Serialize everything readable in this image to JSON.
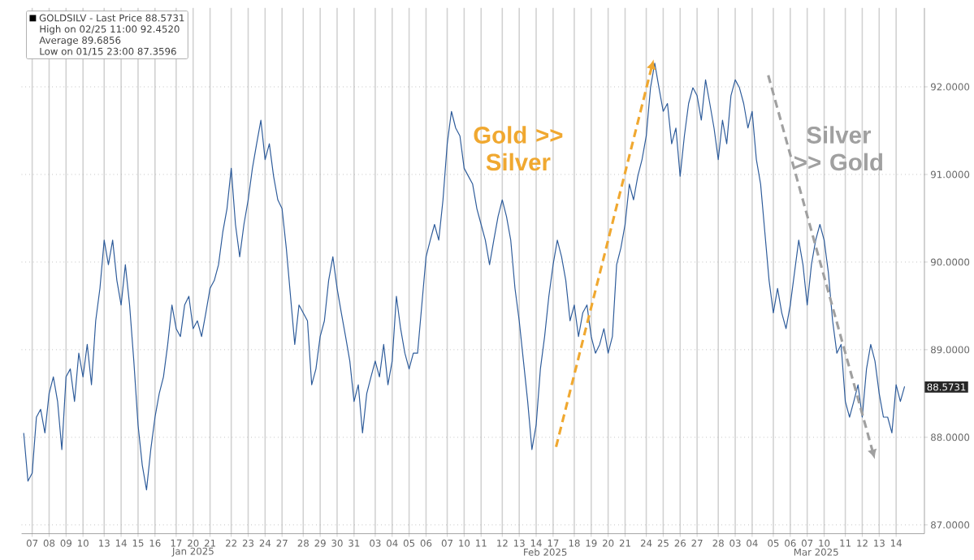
{
  "chart_data": {
    "type": "line",
    "categories": [
      null,
      null,
      "07",
      null,
      null,
      null,
      "08",
      null,
      null,
      null,
      "09",
      null,
      null,
      null,
      "10",
      null,
      null,
      null,
      null,
      "13",
      null,
      null,
      null,
      "14",
      null,
      null,
      null,
      "15",
      null,
      null,
      null,
      "16",
      null,
      null,
      null,
      null,
      "17",
      null,
      null,
      null,
      "20",
      null,
      null,
      null,
      "21",
      null,
      null,
      null,
      null,
      "22",
      null,
      null,
      null,
      "23",
      null,
      null,
      null,
      "24",
      null,
      null,
      null,
      "27",
      null,
      null,
      null,
      null,
      "28",
      null,
      null,
      null,
      "29",
      null,
      null,
      null,
      "30",
      null,
      null,
      null,
      "31",
      null,
      null,
      null,
      null,
      "03",
      null,
      null,
      null,
      "04",
      null,
      null,
      null,
      "05",
      null,
      null,
      null,
      "06",
      null,
      null,
      null,
      null,
      "07",
      null,
      null,
      null,
      "10",
      null,
      null,
      null,
      "11",
      null,
      null,
      null,
      null,
      "12",
      null,
      null,
      null,
      "13",
      null,
      null,
      null,
      "14",
      null,
      null,
      null,
      "17",
      null,
      null,
      null,
      null,
      "18",
      null,
      null,
      null,
      "19",
      null,
      null,
      null,
      "20",
      null,
      null,
      null,
      "21",
      null,
      null,
      null,
      null,
      "24",
      null,
      null,
      null,
      "25",
      null,
      null,
      null,
      "26",
      null,
      null,
      null,
      "27",
      null,
      null,
      null,
      null,
      "28",
      null,
      null,
      null,
      "03",
      null,
      null,
      null,
      "04",
      null,
      null,
      null,
      null,
      "05",
      null,
      null,
      null,
      "06",
      null,
      null,
      null,
      "07",
      null,
      null,
      null,
      "10",
      null,
      null,
      null,
      null,
      "11",
      null,
      null,
      null,
      "12",
      null,
      null,
      null,
      "13",
      null,
      null,
      null,
      "14",
      null,
      null
    ],
    "series": [
      {
        "name": "GOLDSILV - Last Price 88.5731",
        "color": "#2d5b9a",
        "values": [
          88.05,
          87.5,
          87.59,
          88.23,
          88.32,
          88.05,
          88.5,
          88.69,
          88.41,
          87.86,
          88.69,
          88.78,
          88.41,
          88.96,
          88.69,
          89.06,
          88.6,
          89.33,
          89.7,
          90.25,
          89.97,
          90.25,
          89.79,
          89.51,
          89.97,
          89.51,
          88.87,
          88.14,
          87.68,
          87.4,
          87.86,
          88.23,
          88.5,
          88.69,
          89.06,
          89.51,
          89.24,
          89.15,
          89.51,
          89.61,
          89.24,
          89.33,
          89.15,
          89.42,
          89.7,
          89.79,
          89.97,
          90.34,
          90.61,
          91.07,
          90.43,
          90.06,
          90.43,
          90.71,
          91.07,
          91.35,
          91.62,
          91.17,
          91.35,
          90.98,
          90.71,
          90.61,
          90.16,
          89.61,
          89.06,
          89.51,
          89.42,
          89.33,
          88.6,
          88.78,
          89.15,
          89.33,
          89.79,
          90.06,
          89.7,
          89.42,
          89.15,
          88.87,
          88.41,
          88.6,
          88.05,
          88.5,
          88.69,
          88.87,
          88.69,
          89.06,
          88.6,
          88.87,
          89.61,
          89.24,
          88.96,
          88.78,
          88.96,
          88.96,
          89.51,
          90.06,
          90.25,
          90.43,
          90.25,
          90.71,
          91.35,
          91.72,
          91.53,
          91.44,
          91.07,
          90.98,
          90.89,
          90.61,
          90.43,
          90.25,
          89.97,
          90.25,
          90.52,
          90.71,
          90.52,
          90.25,
          89.7,
          89.33,
          88.87,
          88.41,
          87.86,
          88.14,
          88.78,
          89.15,
          89.61,
          89.97,
          90.25,
          90.06,
          89.79,
          89.33,
          89.51,
          89.15,
          89.42,
          89.51,
          89.15,
          88.96,
          89.06,
          89.24,
          88.96,
          89.15,
          89.97,
          90.16,
          90.43,
          90.89,
          90.71,
          90.98,
          91.17,
          91.44,
          91.99,
          92.27,
          91.99,
          91.72,
          91.81,
          91.35,
          91.53,
          90.98,
          91.44,
          91.81,
          91.99,
          91.9,
          91.62,
          92.08,
          91.81,
          91.53,
          91.17,
          91.62,
          91.35,
          91.9,
          92.08,
          91.99,
          91.81,
          91.53,
          91.72,
          91.17,
          90.89,
          90.34,
          89.79,
          89.42,
          89.7,
          89.42,
          89.24,
          89.51,
          89.88,
          90.25,
          89.97,
          89.51,
          89.97,
          90.25,
          90.43,
          90.25,
          89.88,
          89.33,
          88.96,
          89.06,
          88.41,
          88.23,
          88.41,
          88.6,
          88.23,
          88.78,
          89.06,
          88.87,
          88.5,
          88.23,
          88.23,
          88.05,
          88.6,
          88.41,
          88.58
        ]
      }
    ],
    "ylim": [
      86.9,
      92.9
    ],
    "yticks": [
      {
        "value": 87,
        "label": "87.0000"
      },
      {
        "value": 88,
        "label": "88.0000"
      },
      {
        "value": 89,
        "label": "89.0000"
      },
      {
        "value": 90,
        "label": "90.0000"
      },
      {
        "value": 91,
        "label": "91.0000"
      },
      {
        "value": 92,
        "label": "92.0000"
      }
    ],
    "grid": true,
    "legend": "top left",
    "marker": "none",
    "annotations": [
      "High on 02/25 11:00 92.4520",
      "Average 89.6856",
      "Low on 01/15 23:00 87.3596",
      "Gold >> Silver",
      "Silver >> Gold",
      "88.5731",
      "Jan 2025",
      "Feb 2025",
      "Mar 2025"
    ]
  }
}
